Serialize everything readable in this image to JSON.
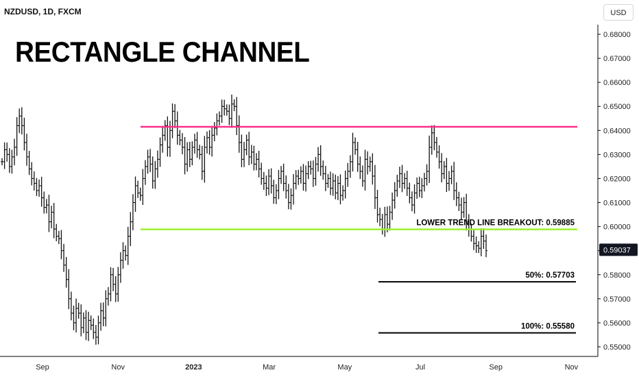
{
  "header": {
    "symbol": "NZDUSD, 1D, FXCM",
    "title": "RECTANGLE CHANNEL",
    "currency": "USD"
  },
  "chart_data": {
    "type": "line",
    "style": "ohlc-bars",
    "title": "RECTANGLE CHANNEL",
    "xlabel": "",
    "ylabel": "",
    "ylim": [
      0.546,
      0.684
    ],
    "y_ticks": [
      "0.68000",
      "0.67000",
      "0.66000",
      "0.65000",
      "0.64000",
      "0.63000",
      "0.62000",
      "0.61000",
      "0.60000",
      "0.59000",
      "0.58000",
      "0.57000",
      "0.56000",
      "0.55000"
    ],
    "x_ticks": [
      {
        "label": "Sep",
        "month_index": 0
      },
      {
        "label": "Nov",
        "month_index": 2
      },
      {
        "label": "2023",
        "month_index": 4,
        "bold": true
      },
      {
        "label": "Mar",
        "month_index": 6
      },
      {
        "label": "May",
        "month_index": 8
      },
      {
        "label": "Jul",
        "month_index": 10
      },
      {
        "label": "Sep",
        "month_index": 12
      },
      {
        "label": "Nov",
        "month_index": 14
      }
    ],
    "series": [
      {
        "values": [
          0.627,
          0.632,
          0.63,
          0.625,
          0.629,
          0.633,
          0.642,
          0.646,
          0.642,
          0.635,
          0.629,
          0.624,
          0.62,
          0.618,
          0.615,
          0.617,
          0.612,
          0.608,
          0.609,
          0.602,
          0.606,
          0.599,
          0.596,
          0.595,
          0.59,
          0.584,
          0.578,
          0.57,
          0.564,
          0.56,
          0.566,
          0.564,
          0.558,
          0.562,
          0.556,
          0.561,
          0.559,
          0.556,
          0.554,
          0.56,
          0.565,
          0.562,
          0.57,
          0.572,
          0.58,
          0.576,
          0.572,
          0.58,
          0.586,
          0.59,
          0.588,
          0.596,
          0.602,
          0.61,
          0.617,
          0.614,
          0.613,
          0.62,
          0.625,
          0.629,
          0.626,
          0.619,
          0.624,
          0.628,
          0.634,
          0.638,
          0.642,
          0.633,
          0.64,
          0.648,
          0.644,
          0.638,
          0.636,
          0.633,
          0.626,
          0.632,
          0.628,
          0.633,
          0.636,
          0.632,
          0.63,
          0.623,
          0.633,
          0.637,
          0.633,
          0.638,
          0.641,
          0.644,
          0.646,
          0.65,
          0.649,
          0.648,
          0.645,
          0.651,
          0.65,
          0.642,
          0.635,
          0.628,
          0.632,
          0.636,
          0.629,
          0.631,
          0.626,
          0.628,
          0.624,
          0.62,
          0.618,
          0.616,
          0.621,
          0.617,
          0.612,
          0.615,
          0.62,
          0.623,
          0.618,
          0.615,
          0.61,
          0.613,
          0.618,
          0.621,
          0.62,
          0.623,
          0.618,
          0.622,
          0.625,
          0.624,
          0.62,
          0.626,
          0.63,
          0.625,
          0.622,
          0.618,
          0.62,
          0.616,
          0.619,
          0.614,
          0.618,
          0.613,
          0.615,
          0.62,
          0.623,
          0.627,
          0.635,
          0.632,
          0.626,
          0.623,
          0.619,
          0.628,
          0.625,
          0.627,
          0.621,
          0.612,
          0.605,
          0.603,
          0.599,
          0.605,
          0.601,
          0.606,
          0.611,
          0.615,
          0.619,
          0.622,
          0.618,
          0.62,
          0.616,
          0.612,
          0.609,
          0.614,
          0.618,
          0.615,
          0.617,
          0.62,
          0.623,
          0.633,
          0.639,
          0.635,
          0.631,
          0.627,
          0.622,
          0.625,
          0.618,
          0.62,
          0.623,
          0.615,
          0.612,
          0.609,
          0.606,
          0.61,
          0.602,
          0.599,
          0.596,
          0.593,
          0.592,
          0.591,
          0.596,
          0.594,
          0.59
        ]
      }
    ],
    "last_price": "0.59037",
    "levels": [
      {
        "name": "upper-resistance",
        "value": 0.6415,
        "color": "#ff2e8a"
      },
      {
        "name": "lower-trend-line",
        "value": 0.59885,
        "color": "#9bf22a",
        "label": "LOWER TREND LINE BREAKOUT: 0.59885"
      },
      {
        "name": "target-50",
        "value": 0.57703,
        "color": "#000000",
        "label": "50%: 0.57703"
      },
      {
        "name": "target-100",
        "value": 0.5558,
        "color": "#000000",
        "label": "100%: 0.55580"
      }
    ],
    "grid": false
  },
  "colors": {
    "bars": "#111111",
    "price_tag_bg": "#131722",
    "axis": "#000000"
  }
}
